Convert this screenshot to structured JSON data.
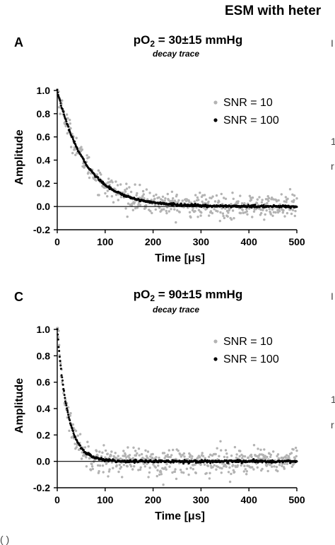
{
  "figure": {
    "header": "ESM with heter",
    "bottom_caption": "(  )  ",
    "right_edge_marks": [
      "I",
      "1",
      "r",
      "I",
      "1",
      "r"
    ]
  },
  "chart_data": [
    {
      "type": "scatter",
      "panel": "A",
      "title": "pO",
      "title_sub": "2",
      "title_rest": " = 30±15 mmHg",
      "subtitle": "decay trace",
      "xlabel": "Time [μs]",
      "ylabel": "Amplitude",
      "xlim": [
        0,
        500
      ],
      "ylim": [
        -0.2,
        1.0
      ],
      "xticks": [
        "0",
        "100",
        "200",
        "300",
        "400",
        "500"
      ],
      "yticks": [
        "1.0",
        "0.8",
        "0.6",
        "0.4",
        "0.2",
        "0.0",
        "-0.2"
      ],
      "legend_position": "top-right",
      "baseline": 0.0,
      "decay_time_constant_us": 60,
      "series": [
        {
          "name": "SNR = 10",
          "color": "#b3b3b3",
          "noise_sd": 0.05,
          "n_points": 500
        },
        {
          "name": "SNR = 100",
          "color": "#000000",
          "noise_sd": 0.005,
          "n_points": 500
        }
      ]
    },
    {
      "type": "scatter",
      "panel": "C",
      "title": "pO",
      "title_sub": "2",
      "title_rest": " = 90±15 mmHg",
      "subtitle": "decay trace",
      "xlabel": "Time [μs]",
      "ylabel": "Amplitude",
      "xlim": [
        0,
        500
      ],
      "ylim": [
        -0.2,
        1.0
      ],
      "xticks": [
        "0",
        "100",
        "200",
        "300",
        "400",
        "500"
      ],
      "yticks": [
        "1.0",
        "0.8",
        "0.6",
        "0.4",
        "0.2",
        "0.0",
        "-0.2"
      ],
      "legend_position": "top-right",
      "baseline": 0.0,
      "decay_time_constant_us": 22,
      "series": [
        {
          "name": "SNR = 10",
          "color": "#b3b3b3",
          "noise_sd": 0.05,
          "n_points": 500
        },
        {
          "name": "SNR = 100",
          "color": "#000000",
          "noise_sd": 0.005,
          "n_points": 500
        }
      ]
    }
  ]
}
